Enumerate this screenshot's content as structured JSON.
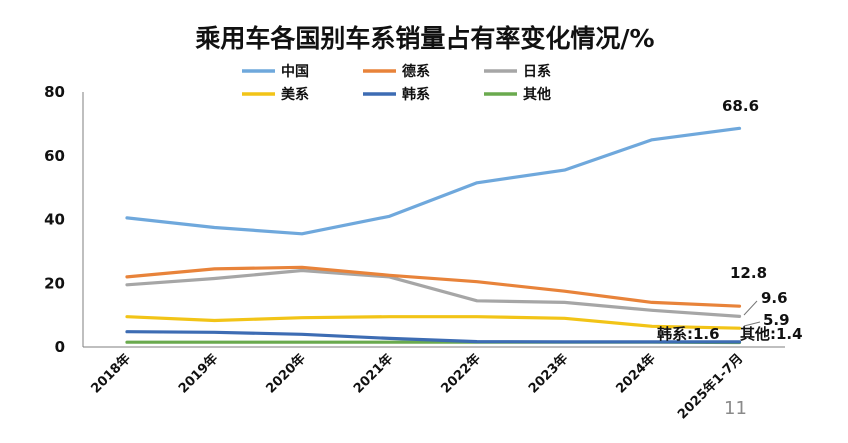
{
  "chart_data": {
    "type": "line",
    "title": "乘用车各国别车系销量占有率变化情况/%",
    "xlabel": "",
    "ylabel": "",
    "categories": [
      "2018年",
      "2019年",
      "2020年",
      "2021年",
      "2022年",
      "2023年",
      "2024年",
      "2025年1-7月"
    ],
    "ylim": [
      0,
      80
    ],
    "yticks": [
      0,
      20,
      40,
      60,
      80
    ],
    "grid": false,
    "legend_position": "top",
    "series": [
      {
        "name": "中国",
        "color": "#6FA8DC",
        "values": [
          40.5,
          37.5,
          35.5,
          41.0,
          51.5,
          55.5,
          65.0,
          68.6
        ]
      },
      {
        "name": "德系",
        "color": "#E8833A",
        "values": [
          22.0,
          24.5,
          25.0,
          22.5,
          20.5,
          17.5,
          14.0,
          12.8
        ]
      },
      {
        "name": "日系",
        "color": "#A6A6A6",
        "values": [
          19.5,
          21.5,
          24.0,
          22.0,
          14.5,
          14.0,
          11.5,
          9.6
        ]
      },
      {
        "name": "美系",
        "color": "#F2C417",
        "values": [
          9.5,
          8.3,
          9.2,
          9.5,
          9.5,
          9.0,
          6.5,
          5.9
        ]
      },
      {
        "name": "韩系",
        "color": "#3D6CB3",
        "values": [
          4.8,
          4.6,
          4.0,
          2.7,
          1.7,
          1.6,
          1.6,
          1.6
        ]
      },
      {
        "name": "其他",
        "color": "#6AAA4E",
        "values": [
          1.5,
          1.5,
          1.5,
          1.5,
          1.5,
          1.5,
          1.5,
          1.4
        ]
      }
    ],
    "annotations": [
      "68.6",
      "12.8",
      "9.6",
      "5.9",
      "韩系:1.6",
      "其他:1.4"
    ]
  },
  "page_number": "11"
}
